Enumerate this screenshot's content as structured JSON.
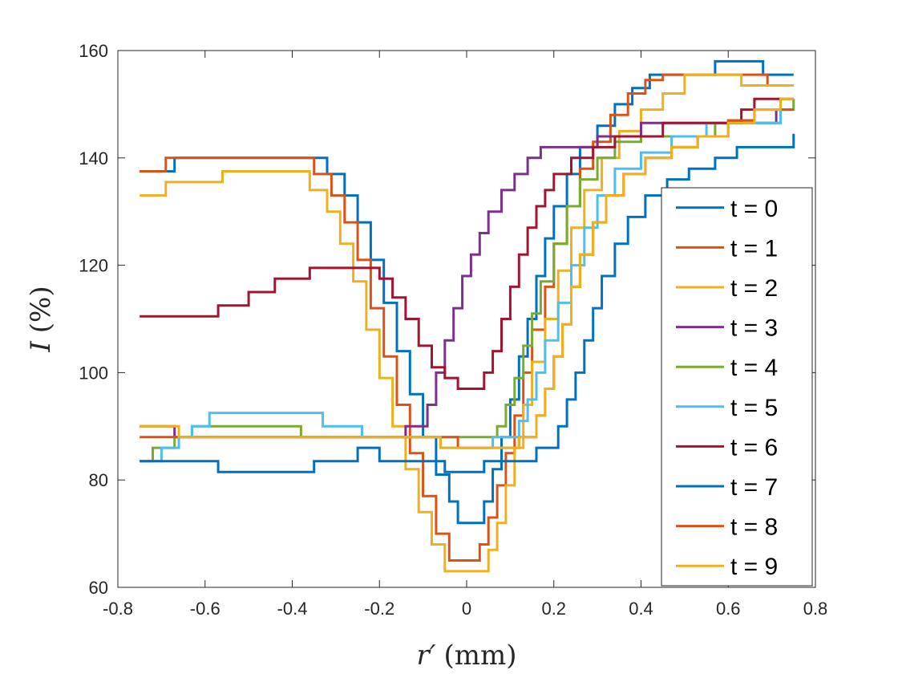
{
  "chart_data": {
    "type": "line",
    "title": "",
    "xlabel": {
      "symbol": "r′",
      "unit": "(mm)"
    },
    "ylabel": {
      "symbol": "I",
      "unit": "(%)"
    },
    "xlim": [
      -0.8,
      0.8
    ],
    "ylim": [
      60,
      160
    ],
    "xticks": [
      -0.8,
      -0.6,
      -0.4,
      -0.2,
      0,
      0.2,
      0.4,
      0.6,
      0.8
    ],
    "yticks": [
      60,
      80,
      100,
      120,
      140,
      160
    ],
    "xtick_labels": [
      "-0.8",
      "-0.6",
      "-0.4",
      "-0.2",
      "0",
      "0.2",
      "0.4",
      "0.6",
      "0.8"
    ],
    "ytick_labels": [
      "60",
      "80",
      "100",
      "120",
      "140",
      "160"
    ],
    "grid": false,
    "legend_position": "right",
    "series": [
      {
        "name": "t = 0",
        "color": "#0072BD",
        "points": [
          [
            -0.75,
            137.5
          ],
          [
            -0.68,
            137.5
          ],
          [
            -0.67,
            140
          ],
          [
            -0.34,
            140
          ],
          [
            -0.32,
            137
          ],
          [
            -0.28,
            133
          ],
          [
            -0.25,
            128
          ],
          [
            -0.22,
            121
          ],
          [
            -0.19,
            113
          ],
          [
            -0.16,
            104
          ],
          [
            -0.13,
            96
          ],
          [
            -0.1,
            88
          ],
          [
            -0.07,
            81
          ],
          [
            -0.04,
            76
          ],
          [
            -0.02,
            72
          ],
          [
            0.02,
            72
          ],
          [
            0.04,
            76
          ],
          [
            0.06,
            82
          ],
          [
            0.08,
            88
          ],
          [
            0.1,
            95
          ],
          [
            0.12,
            103
          ],
          [
            0.14,
            110
          ],
          [
            0.16,
            118
          ],
          [
            0.18,
            125
          ],
          [
            0.2,
            131
          ],
          [
            0.23,
            137
          ],
          [
            0.26,
            142
          ],
          [
            0.3,
            146
          ],
          [
            0.34,
            150
          ],
          [
            0.38,
            153
          ],
          [
            0.42,
            155.5
          ],
          [
            0.56,
            155.5
          ],
          [
            0.57,
            158
          ],
          [
            0.67,
            158
          ],
          [
            0.68,
            155.5
          ],
          [
            0.75,
            155.5
          ]
        ]
      },
      {
        "name": "t = 1",
        "color": "#D95319",
        "points": [
          [
            -0.75,
            137.5
          ],
          [
            -0.7,
            137.5
          ],
          [
            -0.69,
            140
          ],
          [
            -0.37,
            140
          ],
          [
            -0.35,
            137
          ],
          [
            -0.31,
            133
          ],
          [
            -0.28,
            128
          ],
          [
            -0.25,
            121
          ],
          [
            -0.22,
            112
          ],
          [
            -0.19,
            103
          ],
          [
            -0.16,
            94
          ],
          [
            -0.13,
            85
          ],
          [
            -0.1,
            77
          ],
          [
            -0.07,
            70
          ],
          [
            -0.04,
            65
          ],
          [
            0.01,
            65
          ],
          [
            0.03,
            68
          ],
          [
            0.05,
            73
          ],
          [
            0.07,
            79
          ],
          [
            0.09,
            85
          ],
          [
            0.11,
            92
          ],
          [
            0.13,
            100
          ],
          [
            0.15,
            108
          ],
          [
            0.18,
            116
          ],
          [
            0.2,
            124
          ],
          [
            0.23,
            131
          ],
          [
            0.26,
            138
          ],
          [
            0.29,
            143
          ],
          [
            0.33,
            148
          ],
          [
            0.37,
            152
          ],
          [
            0.41,
            154.5
          ],
          [
            0.45,
            155.5
          ],
          [
            0.68,
            155.5
          ],
          [
            0.69,
            153.5
          ],
          [
            0.75,
            153.5
          ]
        ]
      },
      {
        "name": "t = 2",
        "color": "#EDB120",
        "points": [
          [
            -0.75,
            133
          ],
          [
            -0.7,
            133
          ],
          [
            -0.69,
            135.5
          ],
          [
            -0.57,
            135.5
          ],
          [
            -0.56,
            137.5
          ],
          [
            -0.38,
            137.5
          ],
          [
            -0.36,
            134
          ],
          [
            -0.32,
            130
          ],
          [
            -0.29,
            124
          ],
          [
            -0.26,
            117
          ],
          [
            -0.23,
            108
          ],
          [
            -0.2,
            99
          ],
          [
            -0.17,
            90
          ],
          [
            -0.14,
            82
          ],
          [
            -0.11,
            74
          ],
          [
            -0.08,
            68
          ],
          [
            -0.05,
            63
          ],
          [
            0.03,
            63
          ],
          [
            0.05,
            67
          ],
          [
            0.07,
            72
          ],
          [
            0.09,
            79
          ],
          [
            0.11,
            86
          ],
          [
            0.13,
            94
          ],
          [
            0.15,
            102
          ],
          [
            0.18,
            110
          ],
          [
            0.21,
            119
          ],
          [
            0.24,
            127
          ],
          [
            0.27,
            134
          ],
          [
            0.31,
            140
          ],
          [
            0.35,
            145
          ],
          [
            0.4,
            149
          ],
          [
            0.45,
            152
          ],
          [
            0.5,
            155.5
          ],
          [
            0.62,
            155.5
          ],
          [
            0.63,
            153.5
          ],
          [
            0.75,
            153.5
          ]
        ]
      },
      {
        "name": "t = 3",
        "color": "#7E2F8E",
        "points": [
          [
            -0.75,
            90
          ],
          [
            -0.68,
            90
          ],
          [
            -0.67,
            88
          ],
          [
            -0.17,
            88
          ],
          [
            -0.14,
            90
          ],
          [
            -0.11,
            90
          ],
          [
            -0.09,
            94
          ],
          [
            -0.07,
            100
          ],
          [
            -0.05,
            106
          ],
          [
            -0.03,
            112
          ],
          [
            -0.01,
            118
          ],
          [
            0.01,
            122
          ],
          [
            0.03,
            126
          ],
          [
            0.05,
            130
          ],
          [
            0.08,
            134
          ],
          [
            0.11,
            137
          ],
          [
            0.14,
            140
          ],
          [
            0.17,
            142
          ],
          [
            0.28,
            142
          ],
          [
            0.3,
            144
          ],
          [
            0.38,
            144
          ],
          [
            0.4,
            146.5
          ],
          [
            0.7,
            146.5
          ],
          [
            0.71,
            149
          ],
          [
            0.75,
            149
          ]
        ]
      },
      {
        "name": "t = 4",
        "color": "#77AC30",
        "points": [
          [
            -0.75,
            83.5
          ],
          [
            -0.73,
            83.5
          ],
          [
            -0.72,
            86
          ],
          [
            -0.69,
            86
          ],
          [
            -0.67,
            88
          ],
          [
            -0.63,
            90
          ],
          [
            -0.4,
            90
          ],
          [
            -0.38,
            88
          ],
          [
            0.05,
            88
          ],
          [
            0.07,
            90
          ],
          [
            0.09,
            94
          ],
          [
            0.11,
            99
          ],
          [
            0.13,
            105
          ],
          [
            0.15,
            111
          ],
          [
            0.17,
            117
          ],
          [
            0.2,
            124
          ],
          [
            0.23,
            131
          ],
          [
            0.26,
            136
          ],
          [
            0.3,
            140
          ],
          [
            0.34,
            143
          ],
          [
            0.4,
            144
          ],
          [
            0.55,
            144
          ],
          [
            0.57,
            146.5
          ],
          [
            0.7,
            146.5
          ],
          [
            0.72,
            149
          ],
          [
            0.75,
            151
          ]
        ]
      },
      {
        "name": "t = 5",
        "color": "#4DBEEE",
        "points": [
          [
            -0.75,
            83.5
          ],
          [
            -0.72,
            83.5
          ],
          [
            -0.7,
            86
          ],
          [
            -0.66,
            88
          ],
          [
            -0.63,
            90
          ],
          [
            -0.59,
            92.5
          ],
          [
            -0.35,
            92.5
          ],
          [
            -0.33,
            90
          ],
          [
            -0.26,
            90
          ],
          [
            -0.24,
            88
          ],
          [
            -0.08,
            88
          ],
          [
            -0.06,
            86
          ],
          [
            0.04,
            86
          ],
          [
            0.06,
            88
          ],
          [
            0.1,
            88
          ],
          [
            0.12,
            91
          ],
          [
            0.14,
            95
          ],
          [
            0.16,
            100
          ],
          [
            0.18,
            106
          ],
          [
            0.21,
            113
          ],
          [
            0.24,
            120
          ],
          [
            0.27,
            127
          ],
          [
            0.3,
            133
          ],
          [
            0.34,
            138
          ],
          [
            0.4,
            141
          ],
          [
            0.47,
            144
          ],
          [
            0.55,
            146.5
          ],
          [
            0.7,
            146.5
          ],
          [
            0.72,
            149
          ],
          [
            0.75,
            149
          ]
        ]
      },
      {
        "name": "t = 6",
        "color": "#A2142F",
        "points": [
          [
            -0.75,
            110.5
          ],
          [
            -0.58,
            110.5
          ],
          [
            -0.57,
            112.5
          ],
          [
            -0.52,
            112.5
          ],
          [
            -0.5,
            115
          ],
          [
            -0.46,
            115
          ],
          [
            -0.44,
            117.5
          ],
          [
            -0.38,
            117.5
          ],
          [
            -0.36,
            119.5
          ],
          [
            -0.22,
            119.5
          ],
          [
            -0.2,
            117.5
          ],
          [
            -0.17,
            114
          ],
          [
            -0.14,
            110
          ],
          [
            -0.11,
            105
          ],
          [
            -0.08,
            101
          ],
          [
            -0.05,
            99
          ],
          [
            -0.02,
            97
          ],
          [
            0.02,
            97
          ],
          [
            0.04,
            100
          ],
          [
            0.06,
            104
          ],
          [
            0.08,
            110
          ],
          [
            0.1,
            116
          ],
          [
            0.12,
            122
          ],
          [
            0.14,
            127
          ],
          [
            0.16,
            131
          ],
          [
            0.18,
            134
          ],
          [
            0.2,
            137
          ],
          [
            0.24,
            140
          ],
          [
            0.29,
            142
          ],
          [
            0.34,
            144
          ],
          [
            0.4,
            144
          ],
          [
            0.45,
            146.5
          ],
          [
            0.6,
            146.5
          ],
          [
            0.63,
            149
          ],
          [
            0.66,
            151
          ],
          [
            0.75,
            151
          ]
        ]
      },
      {
        "name": "t = 7",
        "color": "#0072BD",
        "points": [
          [
            -0.75,
            83.5
          ],
          [
            -0.58,
            83.5
          ],
          [
            -0.57,
            81.5
          ],
          [
            -0.37,
            81.5
          ],
          [
            -0.35,
            83.5
          ],
          [
            -0.27,
            83.5
          ],
          [
            -0.25,
            86
          ],
          [
            -0.22,
            86
          ],
          [
            -0.2,
            83.5
          ],
          [
            -0.07,
            83.5
          ],
          [
            -0.05,
            81.5
          ],
          [
            0.03,
            81.5
          ],
          [
            0.04,
            83.5
          ],
          [
            0.15,
            83.5
          ],
          [
            0.16,
            86
          ],
          [
            0.19,
            86
          ],
          [
            0.21,
            90
          ],
          [
            0.23,
            95
          ],
          [
            0.25,
            100
          ],
          [
            0.27,
            106
          ],
          [
            0.29,
            112
          ],
          [
            0.31,
            118
          ],
          [
            0.34,
            124
          ],
          [
            0.37,
            129
          ],
          [
            0.41,
            133
          ],
          [
            0.46,
            136
          ],
          [
            0.51,
            138
          ],
          [
            0.57,
            140
          ],
          [
            0.62,
            142
          ],
          [
            0.73,
            142
          ],
          [
            0.75,
            144.5
          ]
        ]
      },
      {
        "name": "t = 8",
        "color": "#D95319",
        "points": [
          [
            -0.75,
            88
          ],
          [
            -0.04,
            88
          ],
          [
            -0.02,
            86
          ],
          [
            0.1,
            86
          ],
          [
            0.12,
            88
          ],
          [
            0.14,
            88
          ],
          [
            0.16,
            92
          ],
          [
            0.18,
            97
          ],
          [
            0.2,
            103
          ],
          [
            0.22,
            109
          ],
          [
            0.24,
            116
          ],
          [
            0.26,
            122
          ],
          [
            0.29,
            128
          ],
          [
            0.32,
            133
          ],
          [
            0.36,
            137
          ],
          [
            0.41,
            140
          ],
          [
            0.47,
            142
          ],
          [
            0.53,
            144
          ],
          [
            0.6,
            147
          ],
          [
            0.66,
            149
          ],
          [
            0.75,
            149
          ]
        ]
      },
      {
        "name": "t = 9",
        "color": "#EDB120",
        "points": [
          [
            -0.75,
            90
          ],
          [
            -0.67,
            90
          ],
          [
            -0.66,
            88
          ],
          [
            -0.08,
            88
          ],
          [
            -0.06,
            86
          ],
          [
            0.1,
            86
          ],
          [
            0.12,
            88
          ],
          [
            0.14,
            88
          ],
          [
            0.16,
            92
          ],
          [
            0.18,
            97
          ],
          [
            0.2,
            103
          ],
          [
            0.22,
            109
          ],
          [
            0.24,
            116
          ],
          [
            0.26,
            122
          ],
          [
            0.29,
            128
          ],
          [
            0.32,
            133
          ],
          [
            0.36,
            137
          ],
          [
            0.41,
            140
          ],
          [
            0.47,
            142
          ],
          [
            0.53,
            144
          ],
          [
            0.6,
            146.5
          ],
          [
            0.66,
            149
          ],
          [
            0.72,
            151
          ],
          [
            0.75,
            151
          ]
        ]
      }
    ]
  }
}
